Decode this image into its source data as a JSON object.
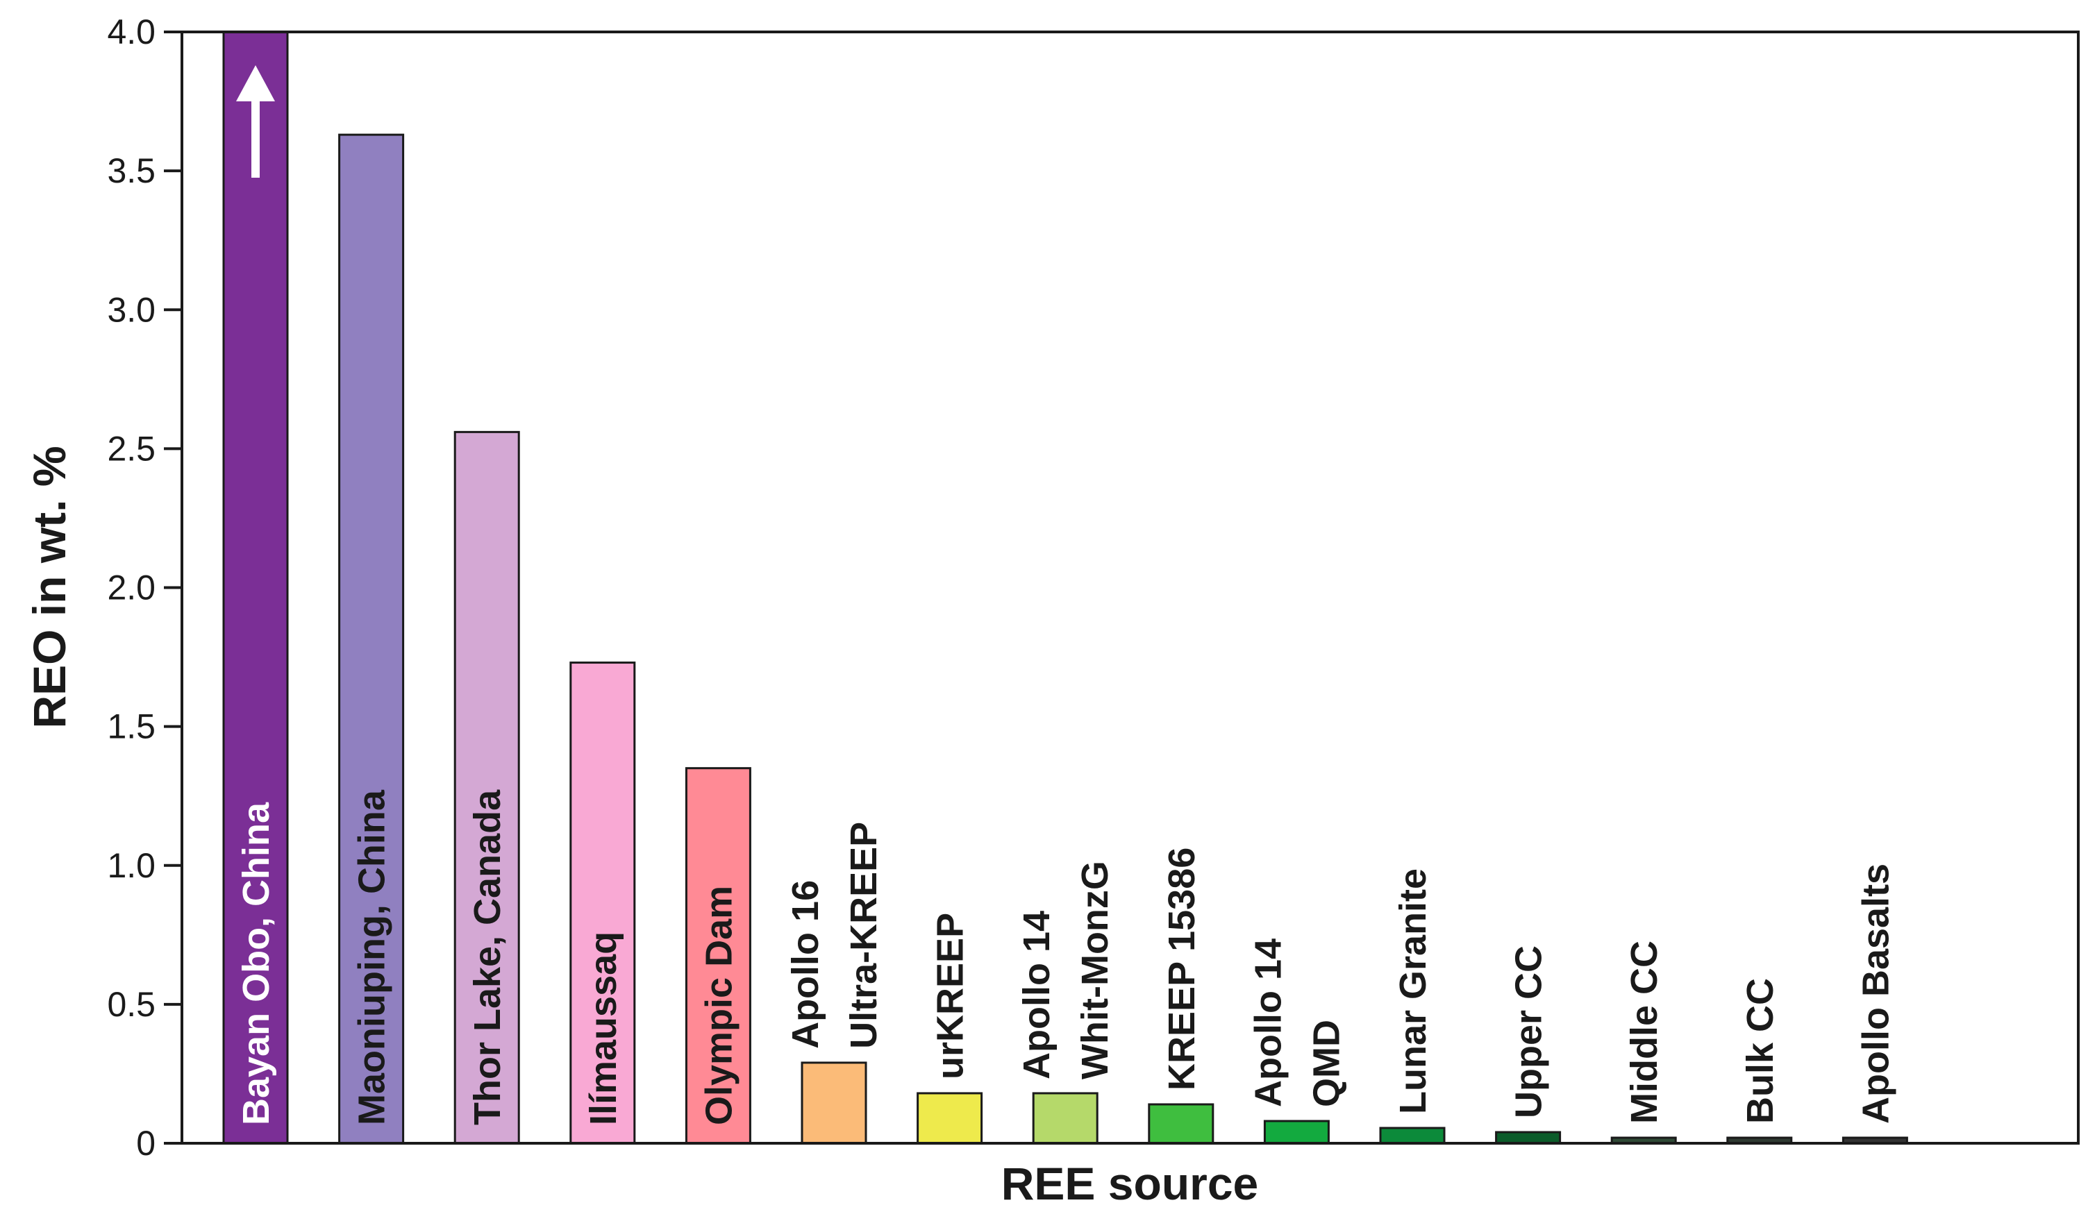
{
  "chart_data": {
    "type": "bar",
    "xlabel": "REE source",
    "ylabel": "REO in wt. %",
    "ylim": [
      0,
      4.0
    ],
    "yticks": [
      "0",
      "0.5",
      "1.0",
      "1.5",
      "2.0",
      "2.5",
      "3.0",
      "3.5",
      "4.0"
    ],
    "ytick_values": [
      0,
      0.5,
      1.0,
      1.5,
      2.0,
      2.5,
      3.0,
      3.5,
      4.0
    ],
    "grid": false,
    "legend": "none",
    "bars": [
      {
        "label_lines": [
          "Bayan Obo, China"
        ],
        "value": 4.0,
        "color": "#7b2f96",
        "text_color": "#ffffff",
        "label_position": "inside",
        "exceeds_axis": true
      },
      {
        "label_lines": [
          "Maoniuping, China"
        ],
        "value": 3.63,
        "color": "#9080c0",
        "text_color": "#1a1a1a",
        "label_position": "inside"
      },
      {
        "label_lines": [
          "Thor Lake, Canada"
        ],
        "value": 2.56,
        "color": "#d4a8d4",
        "text_color": "#1a1a1a",
        "label_position": "inside"
      },
      {
        "label_lines": [
          "Ilímaussaq"
        ],
        "value": 1.73,
        "color": "#f9a9d4",
        "text_color": "#1a1a1a",
        "label_position": "inside"
      },
      {
        "label_lines": [
          "Olympic Dam"
        ],
        "value": 1.35,
        "color": "#ff8a95",
        "text_color": "#1a1a1a",
        "label_position": "inside"
      },
      {
        "label_lines": [
          "Apollo 16",
          "Ultra-KREEP"
        ],
        "value": 0.29,
        "color": "#fbbb78",
        "text_color": "#1a1a1a",
        "label_position": "above"
      },
      {
        "label_lines": [
          "urKREEP"
        ],
        "value": 0.18,
        "color": "#eeea4c",
        "text_color": "#1a1a1a",
        "label_position": "above"
      },
      {
        "label_lines": [
          "Apollo 14",
          "Whit-MonzG"
        ],
        "value": 0.18,
        "color": "#b5d96a",
        "text_color": "#1a1a1a",
        "label_position": "above"
      },
      {
        "label_lines": [
          "KREEP 15386"
        ],
        "value": 0.14,
        "color": "#3fbe3f",
        "text_color": "#1a1a1a",
        "label_position": "above"
      },
      {
        "label_lines": [
          "Apollo 14",
          "QMD"
        ],
        "value": 0.08,
        "color": "#13aa3f",
        "text_color": "#1a1a1a",
        "label_position": "above"
      },
      {
        "label_lines": [
          "Lunar Granite"
        ],
        "value": 0.055,
        "color": "#0c8a3a",
        "text_color": "#1a1a1a",
        "label_position": "above"
      },
      {
        "label_lines": [
          "Upper CC"
        ],
        "value": 0.04,
        "color": "#0b5c2a",
        "text_color": "#1a1a1a",
        "label_position": "above"
      },
      {
        "label_lines": [
          "Middle CC"
        ],
        "value": 0.02,
        "color": "#2f4a36",
        "text_color": "#1a1a1a",
        "label_position": "above"
      },
      {
        "label_lines": [
          "Bulk CC"
        ],
        "value": 0.02,
        "color": "#2f3a32",
        "text_color": "#1a1a1a",
        "label_position": "above"
      },
      {
        "label_lines": [
          "Apollo Basalts"
        ],
        "value": 0.02,
        "color": "#333333",
        "text_color": "#1a1a1a",
        "label_position": "above"
      }
    ]
  }
}
